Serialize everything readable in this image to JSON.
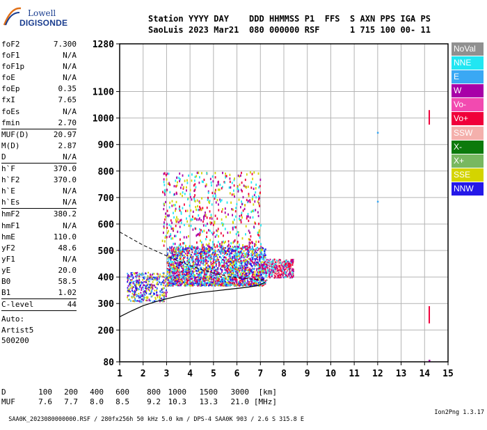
{
  "logo": {
    "line1": "Lowell",
    "line2": "DIGISONDE"
  },
  "header": {
    "row1": [
      "Station",
      "YYYY",
      "DAY",
      "DDD",
      "HHMMSS",
      "P1",
      "FFS",
      "S",
      "AXN",
      "PPS",
      "IGA",
      "PS"
    ],
    "row2": [
      "SaoLuis",
      "2023",
      "Mar21",
      "080",
      "000000",
      "RSF",
      "",
      "1",
      "715",
      "100",
      "00-",
      "11"
    ]
  },
  "params": {
    "group1": [
      {
        "name": "foF2",
        "value": "7.300"
      },
      {
        "name": "foF1",
        "value": "N/A"
      },
      {
        "name": "foF1p",
        "value": "N/A"
      },
      {
        "name": "foE",
        "value": "N/A"
      },
      {
        "name": "foEp",
        "value": "0.35"
      },
      {
        "name": "fxI",
        "value": "7.65"
      },
      {
        "name": "foEs",
        "value": "N/A"
      },
      {
        "name": "fmin",
        "value": "2.70"
      }
    ],
    "group2": [
      {
        "name": "MUF(D)",
        "value": "20.97"
      },
      {
        "name": "M(D)",
        "value": "2.87"
      },
      {
        "name": "D",
        "value": "N/A"
      }
    ],
    "group3": [
      {
        "name": "h`F",
        "value": "370.0"
      },
      {
        "name": "h`F2",
        "value": "370.0"
      },
      {
        "name": "h`E",
        "value": "N/A"
      },
      {
        "name": "h`Es",
        "value": "N/A"
      }
    ],
    "group4": [
      {
        "name": "hmF2",
        "value": "380.2"
      },
      {
        "name": "hmF1",
        "value": "N/A"
      },
      {
        "name": "hmE",
        "value": "110.0"
      },
      {
        "name": "yF2",
        "value": "48.6"
      },
      {
        "name": "yF1",
        "value": "N/A"
      },
      {
        "name": "yE",
        "value": "20.0"
      },
      {
        "name": "B0",
        "value": "58.5"
      },
      {
        "name": "B1",
        "value": "1.02"
      }
    ],
    "clevel": {
      "name": "C-level",
      "value": "44"
    },
    "auto": [
      "Auto:",
      "Artist5",
      "500200"
    ]
  },
  "legend": [
    {
      "label": "NoVal",
      "color": "#909090"
    },
    {
      "label": "NNE",
      "color": "#22e6f2"
    },
    {
      "label": "E",
      "color": "#3aa8f4"
    },
    {
      "label": "W",
      "color": "#a800a8"
    },
    {
      "label": "Vo-",
      "color": "#f24ab0"
    },
    {
      "label": "Vo+",
      "color": "#f0003a"
    },
    {
      "label": "SSW",
      "color": "#f4b0ac"
    },
    {
      "label": "X-",
      "color": "#0c7a0c"
    },
    {
      "label": "X+",
      "color": "#78b860"
    },
    {
      "label": "SSE",
      "color": "#d4d400"
    },
    {
      "label": "NNW",
      "color": "#2418e8"
    }
  ],
  "bottom": {
    "d_label": "D",
    "d_values": [
      "100",
      "200",
      "400",
      "600",
      "800",
      "1000",
      "1500",
      "3000",
      "[km]"
    ],
    "muf_label": "MUF",
    "muf_values": [
      "7.6",
      "7.7",
      "8.0",
      "8.5",
      "9.2",
      "10.3",
      "13.3",
      "21.0",
      "[MHz]"
    ]
  },
  "footer": {
    "left": "SAA0K_2023080000000.RSF / 280fx256h 50 kHz 5.0 km / DPS-4 SAA0K 903 / 2.6 S 315.8 E",
    "right": "Ion2Png 1.3.17"
  },
  "chart_data": {
    "type": "scatter",
    "x_ticks": [
      1,
      2,
      3,
      4,
      5,
      6,
      7,
      8,
      9,
      10,
      11,
      12,
      13,
      14,
      15
    ],
    "y_ticks": [
      80,
      200,
      300,
      400,
      500,
      600,
      700,
      800,
      900,
      1000,
      1100,
      1280
    ],
    "xlim": [
      1,
      15
    ],
    "ylim": [
      80,
      1280
    ],
    "grid": true,
    "echo_clusters": [
      {
        "x_range": [
          3.0,
          7.2
        ],
        "y_range": [
          370,
          520
        ],
        "density": "high",
        "colors": [
          "#a800a8",
          "#f0003a",
          "#d4d400",
          "#3aa8f4",
          "#2418e8",
          "#22e6f2"
        ]
      },
      {
        "x_range": [
          2.8,
          7.0
        ],
        "y_range": [
          520,
          800
        ],
        "density": "low",
        "colors": [
          "#a800a8",
          "#f0003a",
          "#d4d400",
          "#22e6f2"
        ]
      },
      {
        "x_range": [
          1.3,
          3.0
        ],
        "y_range": [
          310,
          420
        ],
        "density": "medium",
        "colors": [
          "#2418e8",
          "#d4d400",
          "#a800a8",
          "#3aa8f4"
        ]
      },
      {
        "x_range": [
          7.2,
          8.4
        ],
        "y_range": [
          400,
          470
        ],
        "density": "medium",
        "colors": [
          "#f0003a",
          "#a800a8",
          "#22e6f2",
          "#f4b0ac"
        ]
      }
    ],
    "isolated_marks": [
      {
        "x": 14.2,
        "y_range": [
          975,
          1030
        ],
        "color": "#f0003a"
      },
      {
        "x": 14.2,
        "y_range": [
          225,
          290
        ],
        "color": "#f0003a"
      },
      {
        "x": 12.0,
        "y": 945,
        "color": "#3aa8f4"
      },
      {
        "x": 12.0,
        "y": 685,
        "color": "#3aa8f4"
      },
      {
        "x": 14.2,
        "y": 85,
        "color": "#a800a8"
      }
    ],
    "profile_solid": [
      {
        "x": 1.0,
        "y": 250
      },
      {
        "x": 1.5,
        "y": 272
      },
      {
        "x": 2.0,
        "y": 292
      },
      {
        "x": 2.5,
        "y": 306
      },
      {
        "x": 3.0,
        "y": 318
      },
      {
        "x": 3.5,
        "y": 328
      },
      {
        "x": 4.0,
        "y": 336
      },
      {
        "x": 4.5,
        "y": 342
      },
      {
        "x": 5.0,
        "y": 347
      },
      {
        "x": 5.5,
        "y": 352
      },
      {
        "x": 6.0,
        "y": 357
      },
      {
        "x": 6.5,
        "y": 362
      },
      {
        "x": 6.9,
        "y": 368
      },
      {
        "x": 7.2,
        "y": 380
      }
    ],
    "profile_dashed": [
      {
        "x": 1.0,
        "y": 570
      },
      {
        "x": 1.5,
        "y": 545
      },
      {
        "x": 2.0,
        "y": 520
      },
      {
        "x": 2.5,
        "y": 500
      },
      {
        "x": 3.0,
        "y": 480
      },
      {
        "x": 3.5,
        "y": 460
      },
      {
        "x": 4.0,
        "y": 443
      },
      {
        "x": 4.5,
        "y": 428
      },
      {
        "x": 5.0,
        "y": 415
      },
      {
        "x": 5.5,
        "y": 405
      },
      {
        "x": 6.0,
        "y": 398
      },
      {
        "x": 6.5,
        "y": 393
      },
      {
        "x": 7.0,
        "y": 390
      },
      {
        "x": 7.3,
        "y": 388
      }
    ]
  }
}
